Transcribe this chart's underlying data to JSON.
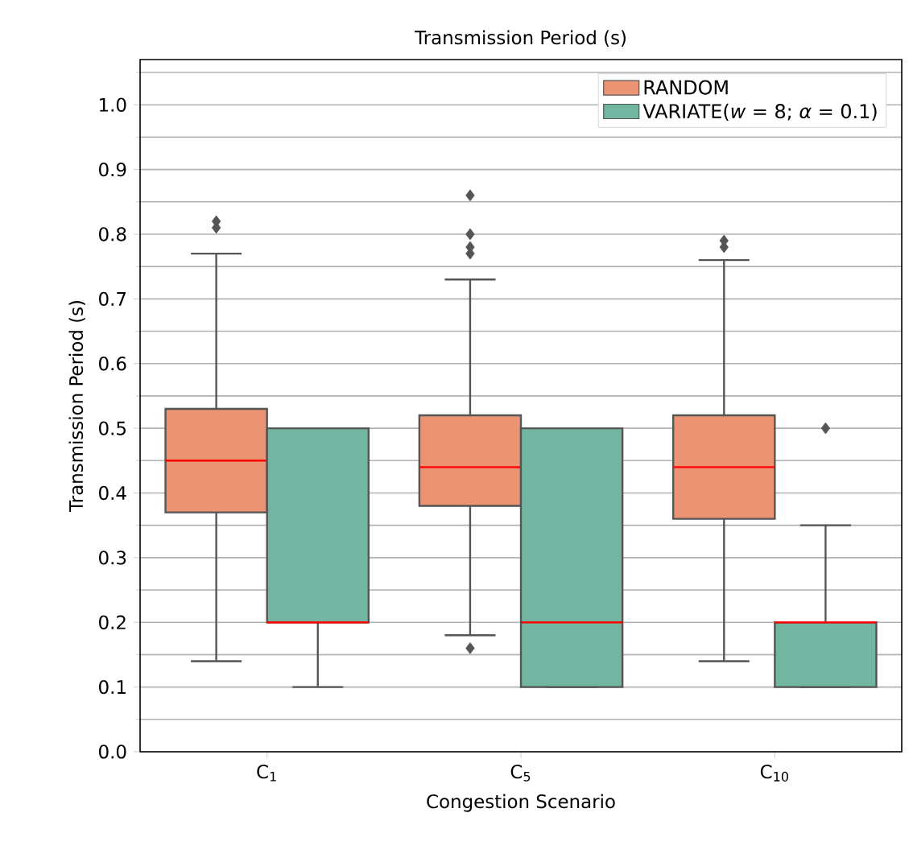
{
  "chart_data": {
    "type": "box",
    "title": "Transmission Period (s)",
    "xlabel": "Congestion Scenario",
    "ylabel": "Transmission Period (s)",
    "categories": [
      "C$_{1}$",
      "C$_{5}$",
      "C$_{10}$"
    ],
    "ylim": [
      0,
      1.07
    ],
    "yticks": [
      {
        "value": 0,
        "label": "0.0"
      },
      {
        "value": 0.05,
        "label": null
      },
      {
        "value": 0.1,
        "label": "0.1"
      },
      {
        "value": 0.15,
        "label": null
      },
      {
        "value": 0.2,
        "label": "0.2"
      },
      {
        "value": 0.25,
        "label": null
      },
      {
        "value": 0.3,
        "label": "0.3"
      },
      {
        "value": 0.35,
        "label": null
      },
      {
        "value": 0.4,
        "label": "0.4"
      },
      {
        "value": 0.45,
        "label": null
      },
      {
        "value": 0.5,
        "label": "0.5"
      },
      {
        "value": 0.55,
        "label": null
      },
      {
        "value": 0.6,
        "label": "0.6"
      },
      {
        "value": 0.65,
        "label": null
      },
      {
        "value": 0.7,
        "label": "0.7"
      },
      {
        "value": 0.75,
        "label": null
      },
      {
        "value": 0.8,
        "label": "0.8"
      },
      {
        "value": 0.85,
        "label": null
      },
      {
        "value": 0.9,
        "label": "0.9"
      },
      {
        "value": 0.95,
        "label": null
      },
      {
        "value": 1.0,
        "label": "1.0"
      },
      {
        "value": 1.05,
        "label": null
      }
    ],
    "grid": "y",
    "legend": "top right",
    "series": [
      {
        "name": "RANDOM",
        "color": "#ea9474",
        "boxes": [
          {
            "low": 0.14,
            "q1": 0.37,
            "median": 0.45,
            "q3": 0.53,
            "high": 0.77,
            "outliers": [
              0.81,
              0.82
            ]
          },
          {
            "low": 0.18,
            "q1": 0.38,
            "median": 0.44,
            "q3": 0.52,
            "high": 0.73,
            "outliers": [
              0.16,
              0.77,
              0.78,
              0.8,
              0.86
            ]
          },
          {
            "low": 0.14,
            "q1": 0.36,
            "median": 0.44,
            "q3": 0.52,
            "high": 0.76,
            "outliers": [
              0.78,
              0.79
            ]
          }
        ]
      },
      {
        "name": "VARIATE(*w* = 8; *α* = 0.1)",
        "color": "#72b6a1",
        "boxes": [
          {
            "low": 0.1,
            "q1": 0.2,
            "median": 0.2,
            "q3": 0.5,
            "high": 0.5
          },
          {
            "low": 0.1,
            "q1": 0.1,
            "median": 0.2,
            "q3": 0.5,
            "high": 0.5
          },
          {
            "low": 0.1,
            "q1": 0.1,
            "median": 0.2,
            "q3": 0.2,
            "high": 0.35,
            "outliers": [
              0.5
            ]
          }
        ]
      }
    ]
  }
}
